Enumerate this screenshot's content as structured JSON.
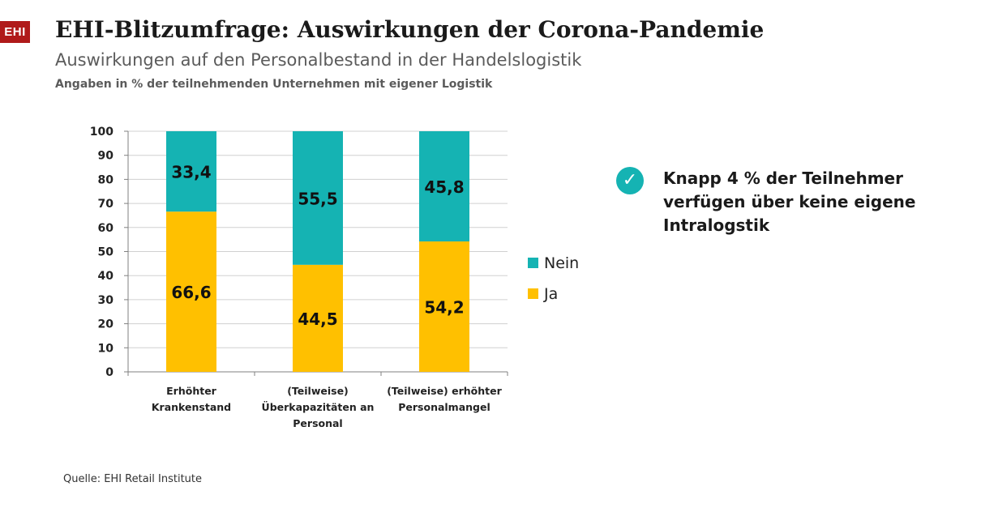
{
  "logo": {
    "text": "EHI"
  },
  "header": {
    "title": "EHI-Blitzumfrage: Auswirkungen der Corona-Pandemie",
    "subtitle": "Auswirkungen auf den Personalbestand in der Handelslogistik",
    "note": "Angaben in % der teilnehmenden Unternehmen mit eigener Logistik"
  },
  "chart_data": {
    "type": "bar",
    "stacked": true,
    "categories": [
      [
        "Erhöhter",
        "Krankenstand"
      ],
      [
        "(Teilweise)",
        "Überkapazitäten an",
        "Personal"
      ],
      [
        "(Teilweise) erhöhter",
        "Personalmangel"
      ]
    ],
    "series": [
      {
        "name": "Ja",
        "color": "#ffc000",
        "values": [
          66.6,
          44.5,
          54.2
        ],
        "labels": [
          "66,6",
          "44,5",
          "54,2"
        ]
      },
      {
        "name": "Nein",
        "color": "#15b3b3",
        "values": [
          33.4,
          55.5,
          45.8
        ],
        "labels": [
          "33,4",
          "55,5",
          "45,8"
        ]
      }
    ],
    "ylim": [
      0,
      100
    ],
    "yticks": [
      0,
      10,
      20,
      30,
      40,
      50,
      60,
      70,
      80,
      90,
      100
    ],
    "grid": true,
    "legend_position": "right",
    "legend_order": [
      "Nein",
      "Ja"
    ]
  },
  "callout": {
    "icon": "checkmark-icon",
    "icon_color": "#15b3b3",
    "text": "Knapp 4 % der Teilnehmer verfügen über keine eigene Intralogstik"
  },
  "source": "Quelle: EHI Retail Institute"
}
